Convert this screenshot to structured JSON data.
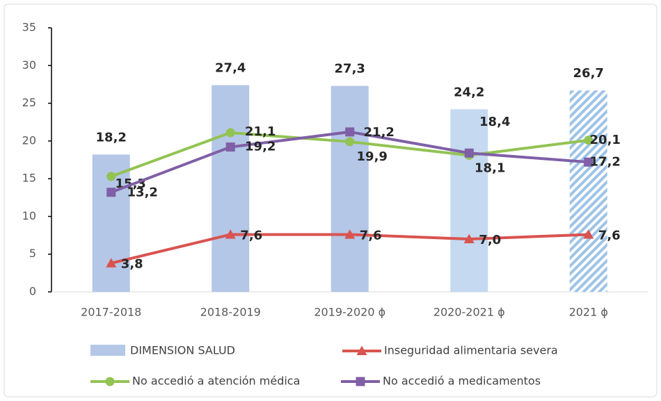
{
  "chart_data": {
    "type": "bar_line",
    "categories": [
      "2017-2018",
      "2018-2019",
      "2019-2020 ϕ",
      "2020-2021 ϕ",
      "2021 ϕ"
    ],
    "ylim": [
      0,
      35
    ],
    "yticks": [
      0,
      5,
      10,
      15,
      20,
      25,
      30,
      35
    ],
    "bar": {
      "name": "DIMENSION SALUD",
      "colors": [
        "#b4c7e7",
        "#b4c7e7",
        "#b4c7e7",
        "#c5d9f1",
        "#9dc3e6"
      ],
      "hatched": [
        false,
        false,
        false,
        false,
        true
      ],
      "values": [
        18.2,
        27.4,
        27.3,
        24.2,
        26.7
      ],
      "value_labels": [
        "18,2",
        "27,4",
        "27,3",
        "24,2",
        "26,7"
      ]
    },
    "series": [
      {
        "name": "Inseguridad alimentaria severa",
        "color": "#d9534f",
        "marker": "triangle",
        "values": [
          3.8,
          7.6,
          7.6,
          7.0,
          7.6
        ],
        "value_labels": [
          "3,8",
          "7,6",
          "7,6",
          "7,0",
          "7,6"
        ]
      },
      {
        "name": "No accedió a atención médica",
        "color": "#92c353",
        "marker": "circle",
        "values": [
          15.3,
          21.1,
          19.9,
          18.1,
          20.1
        ],
        "value_labels": [
          "15,3",
          "21,1",
          "19,9",
          "18,1",
          "20,1"
        ]
      },
      {
        "name": "No accedió a medicamentos",
        "color": "#7f5fa6",
        "marker": "square",
        "values": [
          13.2,
          19.2,
          21.2,
          18.4,
          17.2
        ],
        "value_labels": [
          "13,2",
          "19,2",
          "21,2",
          "18,4",
          "17,2"
        ]
      }
    ]
  }
}
